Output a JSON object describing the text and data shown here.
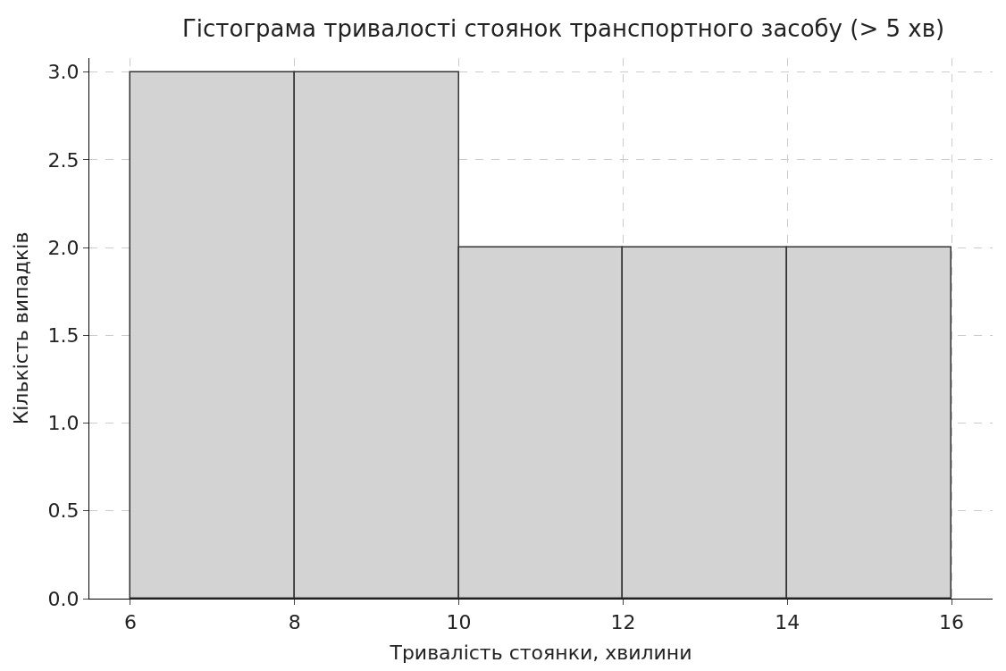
{
  "chart_data": {
    "type": "histogram",
    "title": "Гістограма тривалості стоянок транспортного засобу (> 5 хв)",
    "xlabel": "Тривалість стоянки, хвилини",
    "ylabel": "Кількість випадків",
    "bins": [
      6,
      8,
      10,
      12,
      14,
      16
    ],
    "values": [
      3,
      3,
      2,
      2,
      2
    ],
    "color": "#d3d3d3",
    "xlim": [
      5.5,
      16.5
    ],
    "xticks": [
      6,
      8,
      10,
      12,
      14,
      16
    ],
    "ylim": [
      0,
      3.08
    ],
    "yticks": [
      {
        "value": 0,
        "label": "0.0"
      },
      {
        "value": 0.5,
        "label": "0.5"
      },
      {
        "value": 1,
        "label": "1.0"
      },
      {
        "value": 1.5,
        "label": "1.5"
      },
      {
        "value": 2,
        "label": "2.0"
      },
      {
        "value": 2.5,
        "label": "2.5"
      },
      {
        "value": 3,
        "label": "3.0"
      }
    ],
    "grid": true
  }
}
